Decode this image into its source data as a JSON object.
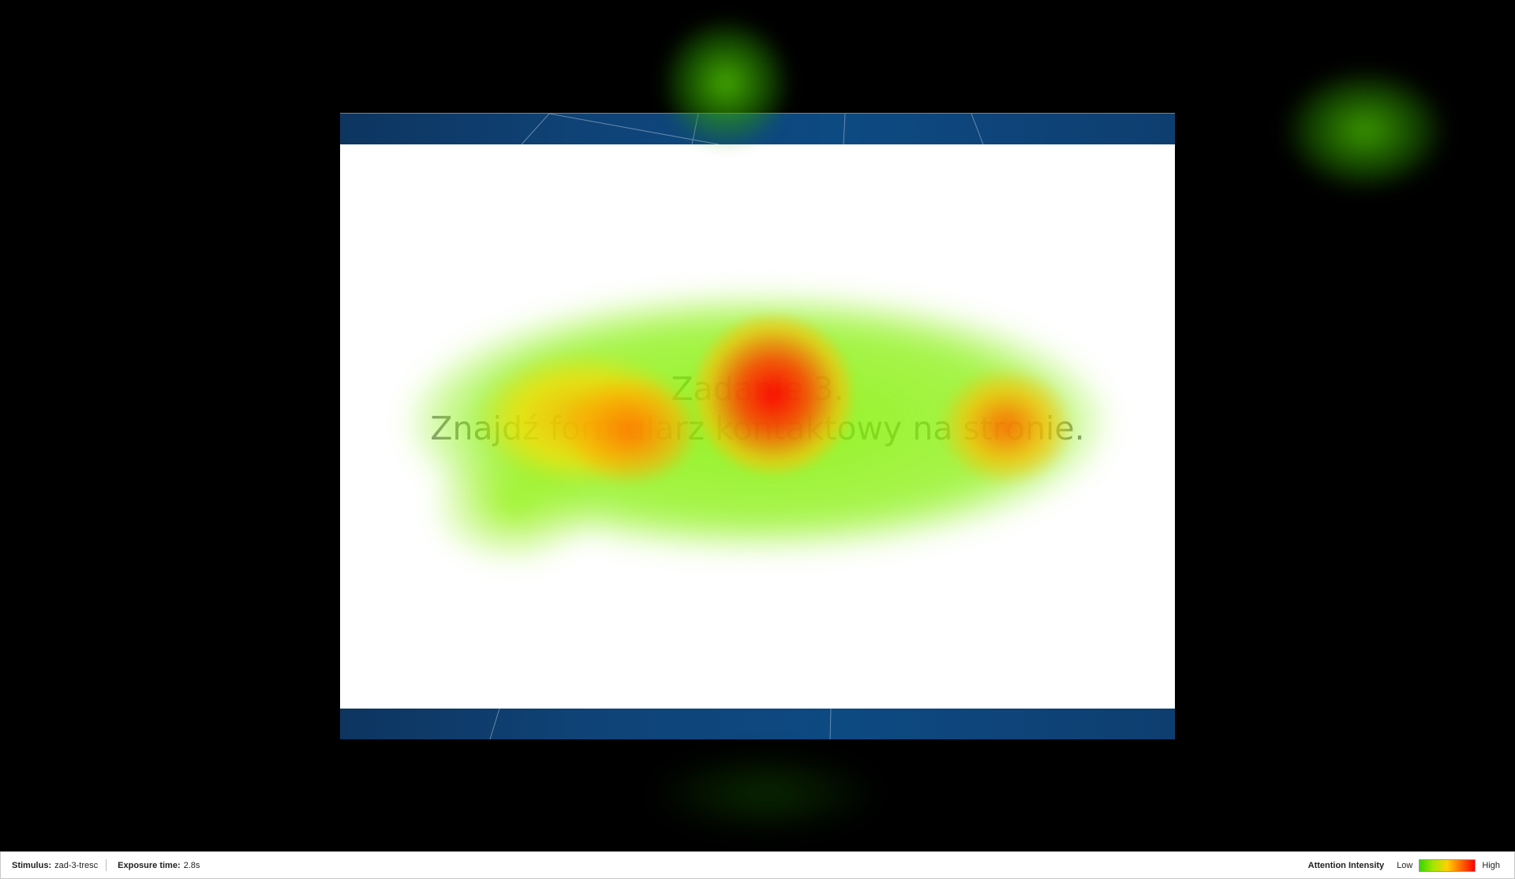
{
  "stimulus": {
    "task_title": "Zadanie 3.",
    "task_description": "Znajdź formularz kontaktowy na stronie."
  },
  "status_bar": {
    "stimulus_label": "Stimulus:",
    "stimulus_value": "zad-3-tresc",
    "exposure_label": "Exposure time:",
    "exposure_value": "2.8s",
    "legend_title": "Attention Intensity",
    "legend_low": "Low",
    "legend_high": "High"
  },
  "colors": {
    "background": "#000000",
    "band": "#0f4377",
    "heat_low": "#39d400",
    "heat_mid": "#ffd000",
    "heat_high": "#ff0000"
  }
}
